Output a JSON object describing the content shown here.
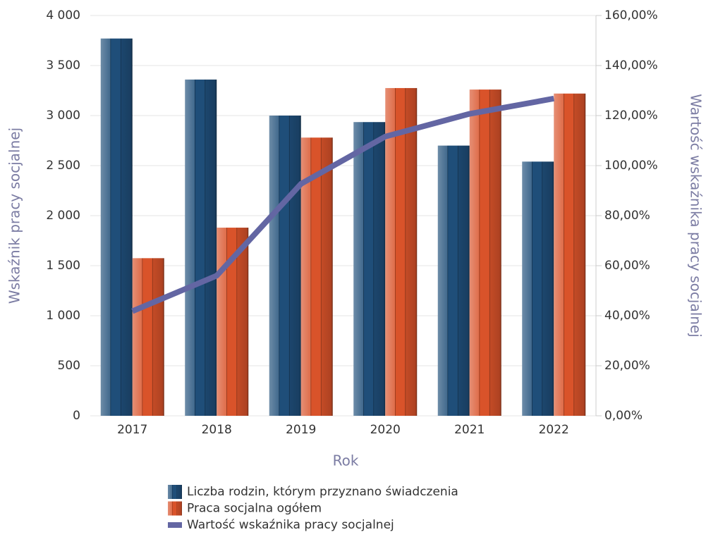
{
  "chart_data": {
    "type": "bar",
    "x_label": "Rok",
    "y_label": "Wskaźnik pracy socjalnej",
    "y2_label": "Wartość wskaźnika pracy socjalnej",
    "categories": [
      "2017",
      "2018",
      "2019",
      "2020",
      "2021",
      "2022"
    ],
    "series": [
      {
        "name": "Liczba rodzin, którym przyznano świadczenia",
        "color": "#1f4e79",
        "type": "bar",
        "values": [
          3770,
          3360,
          3000,
          2935,
          2700,
          2540
        ]
      },
      {
        "name": "Praca socjalna ogółem",
        "color": "#d9532a",
        "type": "bar",
        "values": [
          1575,
          1880,
          2780,
          3275,
          3260,
          3220
        ]
      },
      {
        "name": "Wartość wskaźnika pracy socjalnej",
        "color": "#6366a3",
        "type": "line",
        "axis": "y2",
        "values": [
          41.8,
          56.0,
          92.7,
          111.6,
          120.7,
          126.8
        ]
      }
    ],
    "ylim": [
      0,
      4000
    ],
    "yticks": [
      0,
      500,
      {
        "value": 1000,
        "label": "1 000"
      },
      {
        "value": 1500,
        "label": "1 500"
      },
      {
        "value": 2000,
        "label": "2 000"
      },
      {
        "value": 2500,
        "label": "2 500"
      },
      {
        "value": 3000,
        "label": "3 000"
      },
      {
        "value": 3500,
        "label": "3 500"
      },
      {
        "value": 4000,
        "label": "4 000"
      }
    ],
    "y2lim": [
      0,
      160
    ],
    "y2ticks": [
      {
        "value": 0,
        "label": "0,00%"
      },
      {
        "value": 20,
        "label": "20,00%"
      },
      {
        "value": 40,
        "label": "40,00%"
      },
      {
        "value": 60,
        "label": "60,00%"
      },
      {
        "value": 80,
        "label": "80,00%"
      },
      {
        "value": 100,
        "label": "100,00%"
      },
      {
        "value": 120,
        "label": "120,00%"
      },
      {
        "value": 140,
        "label": "140,00%"
      },
      {
        "value": 160,
        "label": "160,00%"
      }
    ],
    "grid": true
  }
}
